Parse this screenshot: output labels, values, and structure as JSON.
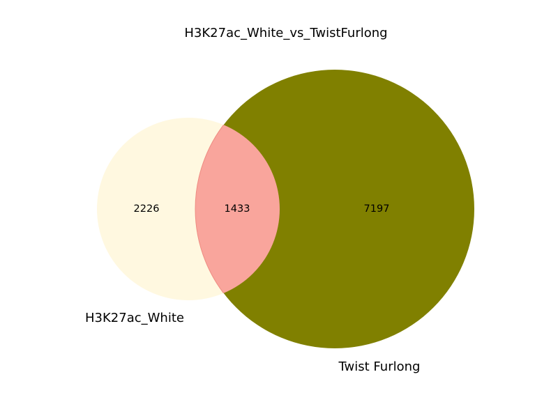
{
  "chart_data": {
    "type": "venn",
    "title": "H3K27ac_White_vs_TwistFurlong",
    "sets": [
      {
        "name": "H3K27ac_White",
        "only": 2226,
        "color": "#fff8e0"
      },
      {
        "name": "Twist Furlong",
        "only": 7197,
        "color": "#808000"
      }
    ],
    "intersection": {
      "count": 1433,
      "color": "#f9a59c"
    }
  }
}
